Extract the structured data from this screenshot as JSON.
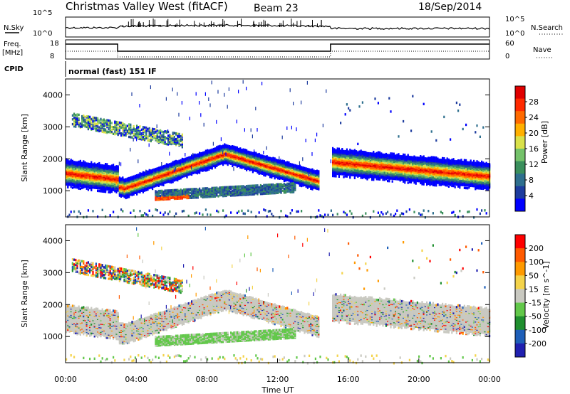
{
  "header": {
    "station": "Christmas Valley West (fitACF)",
    "beam": "Beam 23",
    "date": "18/Sep/2014"
  },
  "top_panels": {
    "nsky_label": "N.Sky",
    "nsky_ticks": [
      "10^5",
      "10^0"
    ],
    "nsearch_label": "N.Search",
    "nsearch_ticks": [
      "10^5",
      "10^0"
    ],
    "freq_label_1": "Freq.",
    "freq_label_2": "[MHz]",
    "freq_ticks": [
      "18",
      "8"
    ],
    "nave_label": "Nave",
    "nave_ticks": [
      "60",
      "0"
    ],
    "cpid_label": "CPID",
    "cpid_text": "normal (fast) 151 IF"
  },
  "colors": {
    "power": [
      "#0000ff",
      "#1d3c9e",
      "#2e6f8e",
      "#3a8f5c",
      "#74c26a",
      "#d9e14a",
      "#ffb000",
      "#ff6a00",
      "#ff2a00",
      "#e00000"
    ],
    "velocity": [
      "#2020b0",
      "#1e5fb8",
      "#1f8f2f",
      "#62c84a",
      "#c9c9c1",
      "#f4d34a",
      "#ff9a00",
      "#ff5a00",
      "#ff0000"
    ]
  },
  "chart_data": [
    {
      "type": "heatmap",
      "panel": "power",
      "ylabel": "Slant Range [km]",
      "yticks": [
        "4000",
        "3000",
        "2000",
        "1000"
      ],
      "ylim_km": [
        180,
        4500
      ],
      "xlim_hours": [
        0,
        24
      ],
      "colorbar_label": "Power [dB]",
      "colorbar_ticks": [
        "28",
        "24",
        "20",
        "16",
        "12",
        "8",
        "4"
      ],
      "features": [
        {
          "name": "main-band-left",
          "x": [
            0,
            3
          ],
          "y": [
            1600,
            1400
          ]
        },
        {
          "name": "main-band-rise",
          "x": [
            3.2,
            9
          ],
          "y": [
            1100,
            2200
          ]
        },
        {
          "name": "main-band-fall",
          "x": [
            9,
            14.3
          ],
          "y": [
            2200,
            1350
          ]
        },
        {
          "name": "main-band-right",
          "x": [
            15,
            24
          ],
          "y": [
            1900,
            1500
          ]
        },
        {
          "name": "low-band",
          "x": [
            5,
            13
          ],
          "y": [
            900,
            1150
          ]
        },
        {
          "name": "upper-echo",
          "x": [
            0.5,
            6.5
          ],
          "y": [
            3300,
            2600
          ]
        }
      ]
    },
    {
      "type": "heatmap",
      "panel": "velocity",
      "ylabel": "Slant Range [km]",
      "yticks": [
        "4000",
        "3000",
        "2000",
        "1000"
      ],
      "ylim_km": [
        180,
        4500
      ],
      "xlim_hours": [
        0,
        24
      ],
      "xlabel": "Time UT",
      "xticks": [
        "00:00",
        "04:00",
        "08:00",
        "12:00",
        "16:00",
        "20:00",
        "00:00"
      ],
      "colorbar_label": "Velocity [m s^-1]",
      "colorbar_ticks": [
        "200",
        "100",
        "50",
        "15",
        "-15",
        "-50",
        "-100",
        "-200"
      ]
    }
  ]
}
